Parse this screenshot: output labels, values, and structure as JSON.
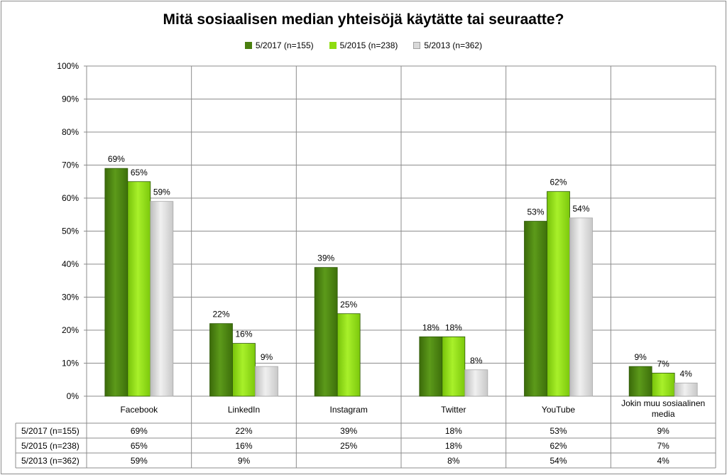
{
  "chart_data": {
    "type": "bar",
    "title": "Mitä sosiaalisen median yhteisöjä käytätte tai seuraatte?",
    "categories": [
      "Facebook",
      "LinkedIn",
      "Instagram",
      "Twitter",
      "YouTube",
      "Jokin muu sosiaalinen media"
    ],
    "series": [
      {
        "name": "5/2017 (n=155)",
        "values": [
          69,
          22,
          39,
          18,
          53,
          9
        ],
        "color": "#4a7f0f",
        "label_texts": [
          "69%",
          "22%",
          "39%",
          "18%",
          "53%",
          "9%"
        ]
      },
      {
        "name": "5/2015 (n=238)",
        "values": [
          65,
          16,
          25,
          18,
          62,
          7
        ],
        "color": "#8edc10",
        "label_texts": [
          "65%",
          "16%",
          "25%",
          "18%",
          "62%",
          "7%"
        ]
      },
      {
        "name": "5/2013 (n=362)",
        "values": [
          59,
          9,
          null,
          8,
          54,
          4
        ],
        "color": "#d9d9d9",
        "label_texts": [
          "59%",
          "9%",
          "",
          "8%",
          "54%",
          "4%"
        ]
      }
    ],
    "ylim": [
      0,
      100
    ],
    "yticks": [
      "0%",
      "10%",
      "20%",
      "30%",
      "40%",
      "50%",
      "60%",
      "70%",
      "80%",
      "90%",
      "100%"
    ],
    "grid": true,
    "legend_position": "top",
    "data_table": true
  }
}
